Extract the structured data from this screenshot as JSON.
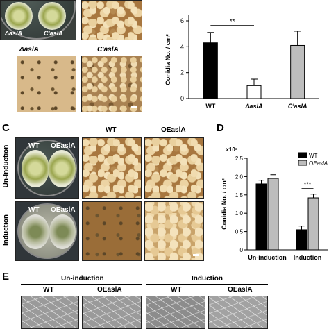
{
  "panels": {
    "top_left": {
      "plate_labels": [
        "ΔaslA",
        "C'aslA"
      ],
      "row2_labels": [
        "ΔaslA",
        "C'aslA"
      ]
    },
    "C": {
      "letter": "C",
      "col_labels": [
        "WT",
        "OEaslA"
      ],
      "row_labels": [
        "Un-Induction",
        "Induction"
      ],
      "plate_labels_top": [
        "WT",
        "OEaslA"
      ],
      "plate_labels_bottom": [
        "WT",
        "OEaslA"
      ]
    },
    "D": {
      "letter": "D"
    },
    "E": {
      "letter": "E",
      "groups": [
        "Un-induction",
        "Induction"
      ],
      "cols": [
        "WT",
        "OEaslA",
        "WT",
        "OEaslA"
      ]
    }
  },
  "chart_data": [
    {
      "type": "bar",
      "categories": [
        "WT",
        "ΔaslA",
        "C'aslA"
      ],
      "values": [
        4.3,
        1.0,
        4.1
      ],
      "errors": [
        0.8,
        0.5,
        1.1
      ],
      "colors": [
        "#000000",
        "#ffffff",
        "#bdbdbd"
      ],
      "ylabel": "Conidia No. / cm²",
      "ylim": [
        0,
        6
      ],
      "yticks": [
        "0",
        "2",
        "4",
        "6"
      ],
      "significance": "**"
    },
    {
      "type": "bar",
      "categories": [
        "Un-induction",
        "Induction"
      ],
      "series": [
        {
          "name": "WT",
          "values": [
            1.8,
            0.55
          ],
          "errors": [
            0.1,
            0.1
          ],
          "color": "#000000"
        },
        {
          "name": "OEaslA",
          "values": [
            1.95,
            1.42
          ],
          "errors": [
            0.1,
            0.1
          ],
          "color": "#bdbdbd"
        }
      ],
      "ylabel": "Conidia No. / cm²",
      "exponent_label": "x10⁸",
      "ylim": [
        0,
        2.5
      ],
      "yticks": [
        "0",
        "0.5",
        "1.0",
        "1.5",
        "2.0",
        "2.5"
      ],
      "significance": "***",
      "legend": "top-right"
    }
  ]
}
